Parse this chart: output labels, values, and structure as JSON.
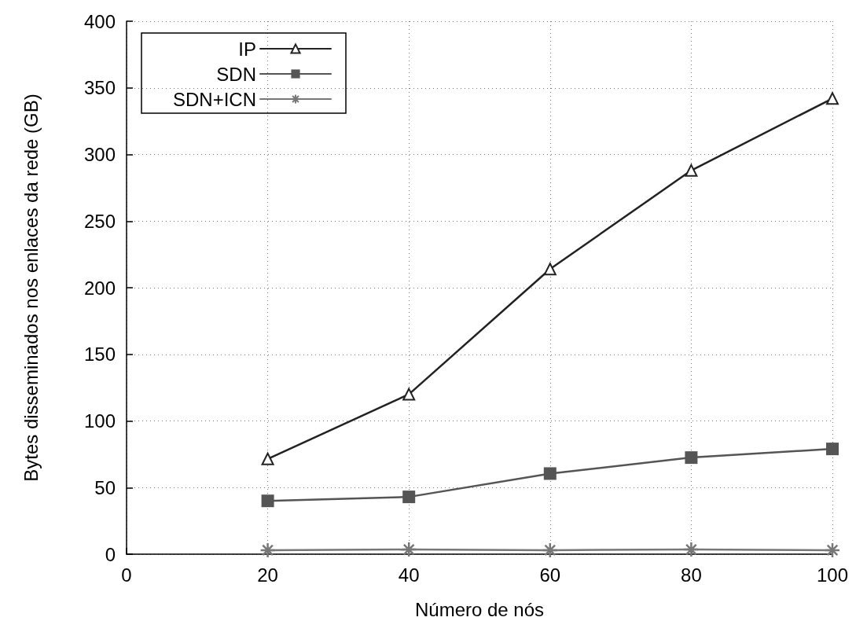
{
  "chart_data": {
    "type": "line",
    "xlabel": "Número de nós",
    "ylabel": "Bytes disseminados nos enlaces da rede (GB)",
    "x": [
      20,
      40,
      60,
      80,
      100
    ],
    "xlim": [
      0,
      100
    ],
    "xticks": [
      0,
      20,
      40,
      60,
      80,
      100
    ],
    "ylim": [
      0,
      400
    ],
    "yticks": [
      0,
      50,
      100,
      150,
      200,
      250,
      300,
      350,
      400
    ],
    "grid": true,
    "legend": "top left",
    "line_style": "solid",
    "series": [
      {
        "name": "IP",
        "color": "#222222",
        "marker": "triangle",
        "values": [
          71.5,
          120,
          214,
          288,
          342
        ]
      },
      {
        "name": "SDN",
        "color": "#555555",
        "marker": "square",
        "values": [
          40,
          43,
          60.5,
          72.5,
          79
        ]
      },
      {
        "name": "SDN+ICN",
        "color": "#777777",
        "marker": "cross",
        "values": [
          3,
          3.5,
          3,
          3.5,
          3
        ]
      }
    ]
  }
}
